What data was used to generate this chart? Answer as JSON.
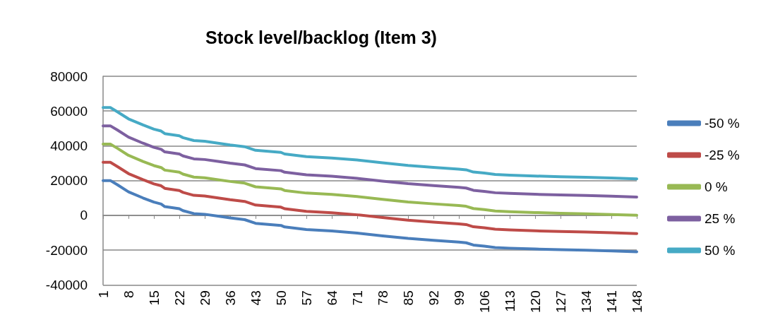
{
  "chart_data": {
    "type": "line",
    "title": "Stock level/backlog (Item 3)",
    "x": [
      1,
      3,
      5,
      8,
      12,
      15,
      17,
      18,
      22,
      23,
      26,
      29,
      33,
      36,
      40,
      43,
      50,
      51,
      57,
      64,
      71,
      78,
      85,
      92,
      99,
      101,
      103,
      106,
      109,
      113,
      120,
      127,
      134,
      141,
      148
    ],
    "series": [
      {
        "name": "-50 %",
        "color": "#4a7ebb",
        "values": [
          20000,
          20000,
          17500,
          13500,
          10000,
          7600,
          6500,
          5000,
          3800,
          2700,
          1000,
          600,
          -600,
          -1500,
          -2500,
          -4600,
          -5800,
          -6700,
          -8200,
          -9000,
          -10200,
          -11800,
          -13300,
          -14400,
          -15400,
          -15800,
          -17100,
          -17700,
          -18500,
          -18900,
          -19400,
          -19800,
          -20100,
          -20500,
          -21000
        ]
      },
      {
        "name": "-25 %",
        "color": "#be4b48",
        "values": [
          30500,
          30500,
          28000,
          24000,
          20500,
          18100,
          17000,
          15500,
          14300,
          13200,
          11500,
          11100,
          9900,
          9000,
          8000,
          5900,
          4700,
          3800,
          2300,
          1500,
          300,
          -1300,
          -2800,
          -3900,
          -4900,
          -5300,
          -6600,
          -7200,
          -8000,
          -8400,
          -8900,
          -9300,
          -9600,
          -10000,
          -10500
        ]
      },
      {
        "name": "0 %",
        "color": "#98b954",
        "values": [
          41000,
          41000,
          38500,
          34500,
          31000,
          28600,
          27500,
          26000,
          24800,
          23700,
          22000,
          21600,
          20400,
          19500,
          18500,
          16400,
          15200,
          14300,
          12800,
          12000,
          10800,
          9200,
          7700,
          6600,
          5600,
          5200,
          3900,
          3300,
          2500,
          2100,
          1600,
          1200,
          900,
          500,
          0
        ]
      },
      {
        "name": "25 %",
        "color": "#7d60a0",
        "values": [
          51500,
          51500,
          49000,
          45000,
          41500,
          39100,
          38000,
          36500,
          35300,
          34200,
          32500,
          32100,
          30900,
          30000,
          29000,
          26900,
          25700,
          24800,
          23300,
          22500,
          21300,
          19700,
          18200,
          17100,
          16100,
          15700,
          14400,
          13800,
          13000,
          12600,
          12100,
          11700,
          11400,
          11000,
          10500
        ]
      },
      {
        "name": "50 %",
        "color": "#46aac5",
        "values": [
          62000,
          62000,
          59500,
          55500,
          52000,
          49600,
          48500,
          47000,
          45800,
          44700,
          43000,
          42600,
          41400,
          40500,
          39500,
          37400,
          36200,
          35300,
          33800,
          33000,
          31800,
          30200,
          28700,
          27600,
          26600,
          26200,
          24900,
          24300,
          23500,
          23100,
          22600,
          22200,
          21900,
          21500,
          21000
        ]
      }
    ],
    "xlim": [
      1,
      148
    ],
    "xticks": [
      1,
      8,
      15,
      22,
      29,
      36,
      43,
      50,
      57,
      64,
      71,
      78,
      85,
      92,
      99,
      106,
      113,
      120,
      127,
      134,
      141,
      148
    ],
    "ylim": [
      -40000,
      80000
    ],
    "yticks": [
      -40000,
      -20000,
      0,
      20000,
      40000,
      60000,
      80000
    ],
    "grid": "y",
    "legend": "right",
    "marker": "none",
    "line_style": "solid"
  }
}
